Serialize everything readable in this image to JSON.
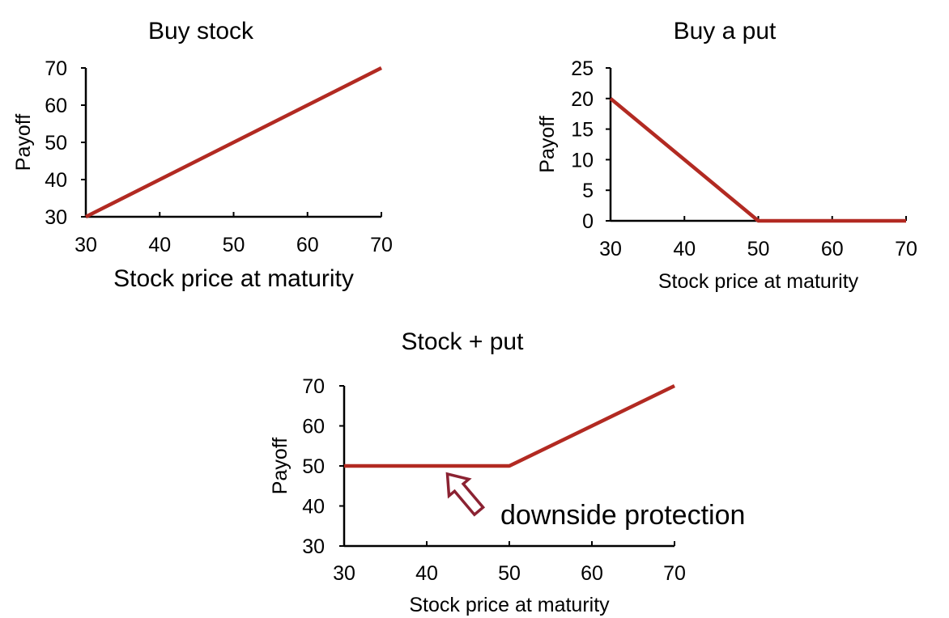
{
  "chart_data": [
    {
      "type": "line",
      "title": "Buy stock",
      "xlabel": "Stock price at maturity",
      "ylabel": "Payoff",
      "xlim": [
        30,
        70
      ],
      "ylim": [
        30,
        70
      ],
      "xticks": [
        30,
        40,
        50,
        60,
        70
      ],
      "yticks": [
        30,
        40,
        50,
        60,
        70
      ],
      "xtick_labels": [
        "30",
        "40",
        "50",
        "60",
        "70"
      ],
      "ytick_labels": [
        "30",
        "40",
        "50",
        "60",
        "70"
      ],
      "series": [
        {
          "x": [
            30,
            70
          ],
          "y": [
            30,
            70
          ],
          "color": "#b22a22"
        }
      ]
    },
    {
      "type": "line",
      "title": "Buy a put",
      "xlabel": "Stock price at maturity",
      "ylabel": "Payoff",
      "xlim": [
        30,
        70
      ],
      "ylim": [
        0,
        25
      ],
      "xticks": [
        30,
        40,
        50,
        60,
        70
      ],
      "yticks": [
        0,
        5,
        10,
        15,
        20,
        25
      ],
      "xtick_labels": [
        "30",
        "40",
        "50",
        "60",
        "70"
      ],
      "ytick_labels": [
        "0",
        "5",
        "10",
        "15",
        "20",
        "25"
      ],
      "series": [
        {
          "x": [
            30,
            50,
            70
          ],
          "y": [
            20,
            0,
            0
          ],
          "color": "#b22a22"
        }
      ]
    },
    {
      "type": "line",
      "title": "Stock + put",
      "xlabel": "Stock price at maturity",
      "ylabel": "Payoff",
      "xlim": [
        30,
        70
      ],
      "ylim": [
        30,
        70
      ],
      "xticks": [
        30,
        40,
        50,
        60,
        70
      ],
      "yticks": [
        30,
        40,
        50,
        60,
        70
      ],
      "xtick_labels": [
        "30",
        "40",
        "50",
        "60",
        "70"
      ],
      "ytick_labels": [
        "30",
        "40",
        "50",
        "60",
        "70"
      ],
      "series": [
        {
          "x": [
            30,
            50,
            70
          ],
          "y": [
            50,
            50,
            70
          ],
          "color": "#b22a22"
        }
      ],
      "annotations": [
        {
          "text": "downside protection",
          "x": 42.5,
          "y": 48,
          "arrow_color": "#8b2232"
        }
      ]
    }
  ]
}
